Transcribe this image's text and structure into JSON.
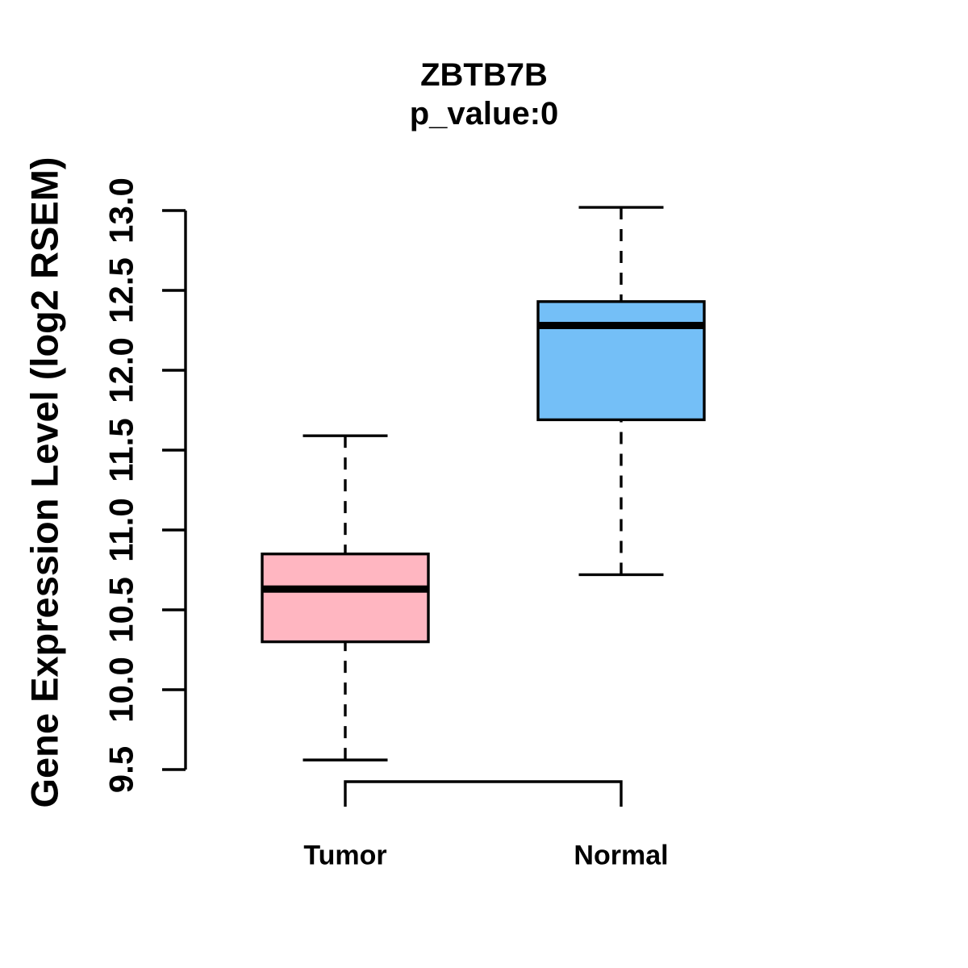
{
  "chart_data": {
    "type": "boxplot",
    "title": "ZBTB7B",
    "subtitle": "p_value:0",
    "p_value": "0",
    "ylabel": "Gene Expression Level (log2 RSEM)",
    "xlabel": "",
    "ylim": [
      9.5,
      13.0
    ],
    "ytick_labels": [
      "9.5",
      "10.0",
      "10.5",
      "11.0",
      "11.5",
      "12.0",
      "12.5",
      "13.0"
    ],
    "grid": false,
    "legend": "none",
    "orientation": "vertical",
    "categories": [
      "Tumor",
      "Normal"
    ],
    "series": [
      {
        "name": "Tumor",
        "box_color": "#FFB6C1",
        "whisker_low": 9.56,
        "q1": 10.3,
        "median": 10.63,
        "q3": 10.85,
        "whisker_high": 11.59
      },
      {
        "name": "Normal",
        "box_color": "#74BFF7",
        "whisker_low": 10.72,
        "q1": 11.69,
        "median": 12.28,
        "q3": 12.43,
        "whisker_high": 13.02
      }
    ],
    "stroke_color": "#000000",
    "background_color": "#FFFFFF"
  }
}
